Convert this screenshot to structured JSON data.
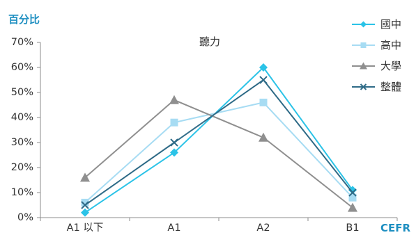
{
  "chart_data": {
    "type": "line",
    "title": "聽力",
    "ylabel": "百分比",
    "xlabel": "CEFR",
    "categories": [
      "A1 以下",
      "A1",
      "A2",
      "B1"
    ],
    "ylim": [
      0,
      70
    ],
    "yticks": [
      0,
      10,
      20,
      30,
      40,
      50,
      60,
      70
    ],
    "ytick_labels": [
      "0%",
      "10%",
      "20%",
      "30%",
      "40%",
      "50%",
      "60%",
      "70%"
    ],
    "grid": false,
    "legend": "top-right",
    "series": [
      {
        "name": "國中",
        "values": [
          2,
          26,
          60,
          11
        ],
        "color": "#2bc3e7",
        "marker": "diamond"
      },
      {
        "name": "高中",
        "values": [
          6,
          38,
          46,
          8
        ],
        "color": "#a7dcf3",
        "marker": "square"
      },
      {
        "name": "大學",
        "values": [
          16,
          47,
          32,
          4
        ],
        "color": "#8f8f8f",
        "marker": "triangle"
      },
      {
        "name": "整體",
        "values": [
          5,
          30,
          55,
          10
        ],
        "color": "#2f6b87",
        "marker": "cross"
      }
    ]
  }
}
